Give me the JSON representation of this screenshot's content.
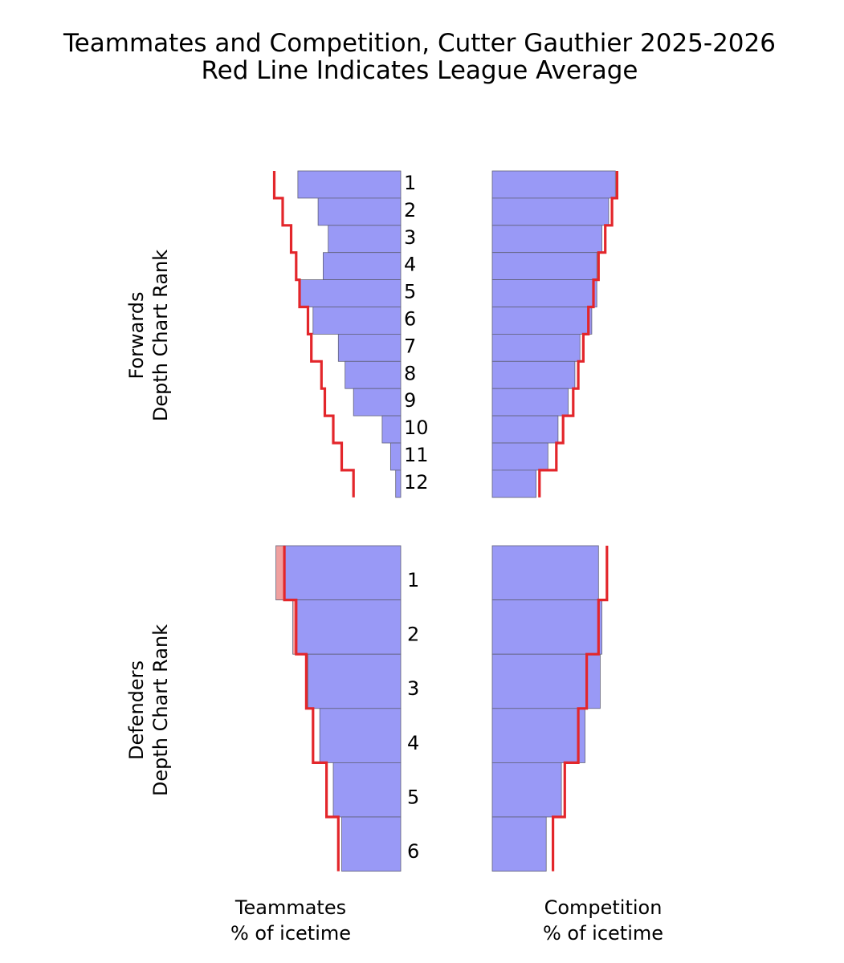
{
  "chart_data": {
    "type": "bar",
    "title": "Teammates and Competition, Cutter Gauthier 2025-2026",
    "subtitle": "Red Line Indicates League Average",
    "xlabel_left": "Teammates\n% of icetime",
    "xlabel_right": "Competition\n% of icetime",
    "colors": {
      "bar": "#9999f6",
      "bar_edge": "#606078",
      "excess": "#f0a09f",
      "average_line": "#e3262b"
    },
    "panels": [
      {
        "group": "forwards",
        "ylabel": "Forwards\nDepth Chart Rank",
        "ranks": [
          "1",
          "2",
          "3",
          "4",
          "5",
          "6",
          "7",
          "8",
          "9",
          "10",
          "11",
          "12"
        ],
        "teammates": [
          61,
          49,
          43,
          46,
          60,
          52,
          37,
          33,
          28,
          11,
          6,
          3
        ],
        "teammates_league_avg": [
          75,
          70,
          65,
          62,
          60,
          55,
          53,
          47,
          45,
          40,
          35,
          28
        ],
        "competition": [
          73,
          69,
          65,
          62,
          62,
          59,
          52,
          49,
          45,
          39,
          33,
          26
        ],
        "competition_league_avg": [
          74,
          71,
          67,
          63,
          60,
          57,
          54,
          51,
          48,
          42,
          38,
          28
        ]
      },
      {
        "group": "defenders",
        "ylabel": "Defenders\nDepth Chart Rank",
        "ranks": [
          "1",
          "2",
          "3",
          "4",
          "5",
          "6"
        ],
        "teammates": [
          74,
          64,
          55,
          48,
          40,
          35
        ],
        "teammates_league_avg": [
          69,
          62,
          56,
          52,
          44,
          37
        ],
        "competition": [
          63,
          65,
          64,
          55,
          41,
          32
        ],
        "competition_league_avg": [
          68,
          63,
          56,
          51,
          43,
          36
        ]
      }
    ]
  }
}
